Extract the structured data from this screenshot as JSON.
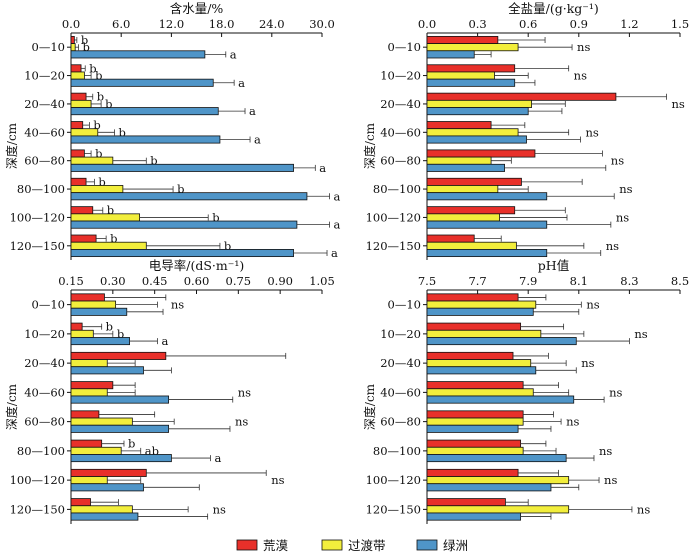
{
  "chart_data": [
    {
      "type": "bar",
      "orientation": "horizontal",
      "title": "含水量/%",
      "ylabel": "深度/cm",
      "xlim": [
        0,
        30
      ],
      "xticks": [
        "0.0",
        "6.0",
        "12.0",
        "18.0",
        "24.0",
        "30.0"
      ],
      "categories": [
        "0—10",
        "10—20",
        "20—40",
        "40—60",
        "60—80",
        "80—100",
        "100—120",
        "120—150"
      ],
      "series": [
        {
          "name": "荒漠",
          "values": [
            0.4,
            1.2,
            1.8,
            1.4,
            1.6,
            1.8,
            2.6,
            3.0
          ],
          "err": [
            0.3,
            0.5,
            0.8,
            0.8,
            0.8,
            1.0,
            1.2,
            1.2
          ]
        },
        {
          "name": "过渡带",
          "values": [
            0.5,
            1.6,
            2.4,
            3.2,
            5.0,
            6.2,
            8.2,
            9.0
          ],
          "err": [
            0.4,
            0.8,
            1.2,
            2.0,
            4.0,
            6.0,
            8.2,
            8.8
          ]
        },
        {
          "name": "绿洲",
          "values": [
            16.0,
            17.0,
            17.6,
            17.8,
            26.6,
            28.2,
            27.0,
            26.6
          ],
          "err": [
            2.5,
            2.5,
            3.2,
            3.6,
            2.6,
            2.7,
            3.9,
            4.0
          ]
        }
      ],
      "annotations": [
        [
          "b",
          "b",
          "a"
        ],
        [
          "b",
          "b",
          "a"
        ],
        [
          "b",
          "b",
          "a"
        ],
        [
          "b",
          "b",
          "a"
        ],
        [
          "b",
          "b",
          "a"
        ],
        [
          "b",
          "b",
          "a"
        ],
        [
          "b",
          "b",
          "a"
        ],
        [
          "b",
          "b",
          "a"
        ]
      ]
    },
    {
      "type": "bar",
      "orientation": "horizontal",
      "title": "全盐量/(g·kg⁻¹)",
      "ylabel": "深度/cm",
      "xlim": [
        0,
        1.5
      ],
      "xticks": [
        "0.0",
        "0.3",
        "0.6",
        "0.9",
        "1.2",
        "1.5"
      ],
      "categories": [
        "0—10",
        "10—20",
        "20—40",
        "40—60",
        "60—80",
        "80—100",
        "100—120",
        "120—150"
      ],
      "series": [
        {
          "name": "荒漠",
          "values": [
            0.42,
            0.52,
            1.12,
            0.38,
            0.64,
            0.56,
            0.52,
            0.28
          ],
          "err": [
            0.28,
            0.32,
            0.3,
            0.2,
            0.4,
            0.36,
            0.3,
            0.16
          ]
        },
        {
          "name": "过渡带",
          "values": [
            0.54,
            0.4,
            0.62,
            0.54,
            0.38,
            0.42,
            0.43,
            0.53
          ],
          "err": [
            0.32,
            0.2,
            0.2,
            0.3,
            0.12,
            0.18,
            0.4,
            0.4
          ]
        },
        {
          "name": "绿洲",
          "values": [
            0.28,
            0.52,
            0.6,
            0.59,
            0.46,
            0.71,
            0.71,
            0.71
          ],
          "err": [
            0.1,
            0.12,
            0.2,
            0.32,
            0.6,
            0.4,
            0.38,
            0.32
          ]
        }
      ],
      "annotations": [
        "ns",
        "ns",
        "ns",
        "ns",
        "ns",
        "ns",
        "ns",
        "ns"
      ]
    },
    {
      "type": "bar",
      "orientation": "horizontal",
      "title": "电导率/(dS·m⁻¹)",
      "ylabel": "深度/cm",
      "xlim": [
        0.15,
        1.05
      ],
      "xticks": [
        "0.15",
        "0.30",
        "0.45",
        "0.60",
        "0.75",
        "0.90",
        "1.05"
      ],
      "categories": [
        "0—10",
        "10—20",
        "20—40",
        "40—60",
        "60—80",
        "80—100",
        "100—120",
        "120—150"
      ],
      "series": [
        {
          "name": "荒漠",
          "values": [
            0.27,
            0.19,
            0.49,
            0.3,
            0.25,
            0.26,
            0.42,
            0.22
          ],
          "err": [
            0.22,
            0.07,
            0.43,
            0.08,
            0.2,
            0.08,
            0.43,
            0.1
          ]
        },
        {
          "name": "过渡带",
          "values": [
            0.31,
            0.23,
            0.28,
            0.28,
            0.37,
            0.33,
            0.28,
            0.37
          ],
          "err": [
            0.15,
            0.07,
            0.1,
            0.1,
            0.15,
            0.07,
            0.12,
            0.2
          ]
        },
        {
          "name": "绿洲",
          "values": [
            0.35,
            0.36,
            0.41,
            0.5,
            0.5,
            0.51,
            0.41,
            0.39
          ],
          "err": [
            0.13,
            0.1,
            0.1,
            0.23,
            0.22,
            0.14,
            0.2,
            0.25
          ]
        }
      ],
      "annotations": [
        [
          "ns"
        ],
        [
          "b",
          "b",
          "a"
        ],
        [
          ""
        ],
        [
          "ns"
        ],
        [
          "ns"
        ],
        [
          "b",
          "ab",
          "a"
        ],
        [
          "ns"
        ],
        [
          "ns"
        ]
      ]
    },
    {
      "type": "bar",
      "orientation": "horizontal",
      "title": "pH值",
      "ylabel": "深度/cm",
      "xlim": [
        7.5,
        8.5
      ],
      "xticks": [
        "7.5",
        "7.7",
        "7.9",
        "8.1",
        "8.3",
        "8.5"
      ],
      "categories": [
        "0—10",
        "10—20",
        "20—40",
        "40—60",
        "60—80",
        "80—100",
        "100—120",
        "120—150"
      ],
      "series": [
        {
          "name": "荒漠",
          "values": [
            7.86,
            7.87,
            7.84,
            7.88,
            7.88,
            7.87,
            7.86,
            7.81
          ],
          "err": [
            0.11,
            0.17,
            0.14,
            0.14,
            0.12,
            0.1,
            0.16,
            0.09
          ]
        },
        {
          "name": "过渡带",
          "values": [
            7.93,
            7.95,
            7.91,
            7.92,
            7.88,
            7.88,
            8.06,
            8.06
          ],
          "err": [
            0.18,
            0.17,
            0.14,
            0.14,
            0.15,
            0.13,
            0.12,
            0.25
          ]
        },
        {
          "name": "绿洲",
          "values": [
            7.92,
            8.09,
            7.93,
            8.08,
            7.86,
            8.05,
            7.99,
            7.87
          ],
          "err": [
            0.18,
            0.21,
            0.16,
            0.12,
            0.13,
            0.11,
            0.11,
            0.12
          ]
        }
      ],
      "annotations": [
        "ns",
        "ns",
        "ns",
        "ns",
        "ns",
        "ns",
        "ns",
        "ns"
      ]
    }
  ],
  "legend": {
    "items": [
      {
        "label": "荒漠",
        "color": "#e8302a"
      },
      {
        "label": "过渡带",
        "color": "#f2ee3c"
      },
      {
        "label": "绿洲",
        "color": "#4f95c8"
      }
    ]
  },
  "colors": {
    "series": [
      "#e8302a",
      "#f2ee3c",
      "#4f95c8"
    ],
    "axis": "#111111"
  }
}
